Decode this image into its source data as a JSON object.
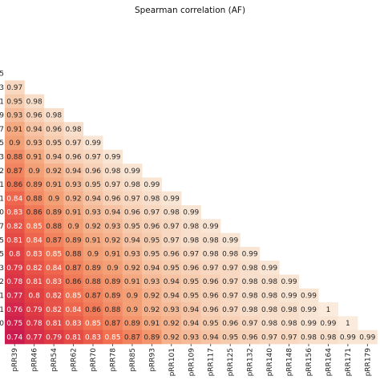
{
  "chart_data": {
    "type": "heatmap",
    "title": "Spearman correlation (AF)",
    "xlabel": "",
    "ylabel": "",
    "mask": "upper-triangle",
    "colorscale": "rocket",
    "columns": [
      "pRR39",
      "pRR46",
      "pRR54",
      "pRR62",
      "pRR70",
      "pRR78",
      "pRR85",
      "pRR93",
      "pRR101",
      "pRR109",
      "pRR117",
      "pRR125",
      "pRR132",
      "pRR140",
      "pRR148",
      "pRR156",
      "pRR164",
      "pRR171",
      "pRR179"
    ],
    "row_labels": [
      "5",
      "3",
      "1",
      "9",
      "7",
      "5",
      "3",
      "2",
      "1",
      "1",
      "0",
      "7",
      "5",
      "5",
      "3",
      "2",
      "1",
      "1",
      "0"
    ],
    "rows": [
      [],
      [
        0.97
      ],
      [
        0.95,
        0.98
      ],
      [
        0.93,
        0.96,
        0.98
      ],
      [
        0.91,
        0.94,
        0.96,
        0.98
      ],
      [
        0.9,
        0.93,
        0.95,
        0.97,
        0.99
      ],
      [
        0.88,
        0.91,
        0.94,
        0.96,
        0.97,
        0.99
      ],
      [
        0.87,
        0.9,
        0.92,
        0.94,
        0.96,
        0.98,
        0.99
      ],
      [
        0.86,
        0.89,
        0.91,
        0.93,
        0.95,
        0.97,
        0.98,
        0.99
      ],
      [
        0.84,
        0.88,
        0.9,
        0.92,
        0.94,
        0.96,
        0.97,
        0.98,
        0.99
      ],
      [
        0.83,
        0.86,
        0.89,
        0.91,
        0.93,
        0.94,
        0.96,
        0.97,
        0.98,
        0.99
      ],
      [
        0.82,
        0.85,
        0.88,
        0.9,
        0.92,
        0.93,
        0.95,
        0.96,
        0.97,
        0.98,
        0.99
      ],
      [
        0.81,
        0.84,
        0.87,
        0.89,
        0.91,
        0.92,
        0.94,
        0.95,
        0.97,
        0.98,
        0.98,
        0.99
      ],
      [
        0.8,
        0.83,
        0.85,
        0.88,
        0.9,
        0.91,
        0.93,
        0.95,
        0.96,
        0.97,
        0.98,
        0.98,
        0.99
      ],
      [
        0.79,
        0.82,
        0.84,
        0.87,
        0.89,
        0.9,
        0.92,
        0.94,
        0.95,
        0.96,
        0.97,
        0.97,
        0.98,
        0.99
      ],
      [
        0.78,
        0.81,
        0.83,
        0.86,
        0.88,
        0.89,
        0.91,
        0.93,
        0.94,
        0.95,
        0.96,
        0.97,
        0.98,
        0.98,
        0.99
      ],
      [
        0.77,
        0.8,
        0.82,
        0.85,
        0.87,
        0.89,
        0.9,
        0.92,
        0.94,
        0.95,
        0.96,
        0.97,
        0.98,
        0.98,
        0.99,
        0.99
      ],
      [
        0.76,
        0.79,
        0.82,
        0.84,
        0.86,
        0.88,
        0.9,
        0.92,
        0.93,
        0.94,
        0.96,
        0.97,
        0.98,
        0.98,
        0.98,
        0.99,
        1
      ],
      [
        0.75,
        0.78,
        0.81,
        0.83,
        0.85,
        0.87,
        0.89,
        0.91,
        0.92,
        0.94,
        0.95,
        0.96,
        0.97,
        0.98,
        0.98,
        0.99,
        0.99,
        1
      ],
      [
        0.74,
        0.77,
        0.79,
        0.81,
        0.83,
        0.85,
        0.87,
        0.89,
        0.92,
        0.93,
        0.94,
        0.95,
        0.96,
        0.97,
        0.97,
        0.98,
        0.98,
        0.99,
        0.99
      ]
    ]
  }
}
